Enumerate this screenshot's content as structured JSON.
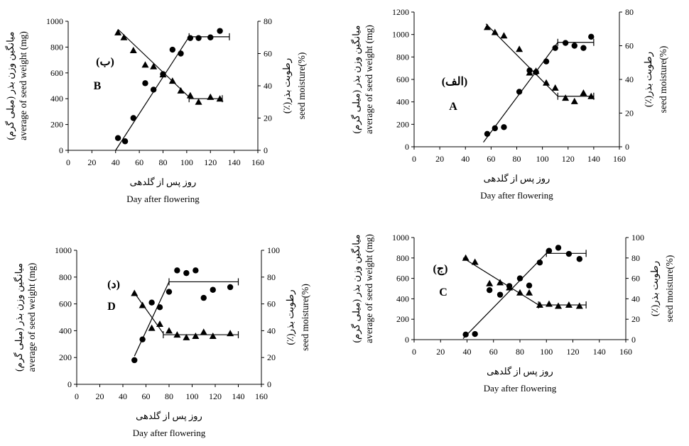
{
  "chart_data": [
    {
      "id": "B",
      "type": "scatter",
      "panel_label": "B",
      "panel_label_fa": "(ب)",
      "xlabel_fa": "روز پس از گلدهی",
      "xlabel": "Day after flowering",
      "ylabel_fa": "میانگین وزن بذر (میلی گرم)",
      "ylabel": "average of seed weight (mg)",
      "y2label_fa": "رطوبت بذر(٪)",
      "y2label": "seed moisture(%)",
      "xlim": [
        0,
        160
      ],
      "xticks": [
        0,
        20,
        40,
        60,
        80,
        100,
        120,
        140,
        160
      ],
      "ylim": [
        0,
        1000
      ],
      "yticks": [
        0,
        200,
        400,
        600,
        800,
        1000
      ],
      "y2lim": [
        0,
        80
      ],
      "y2ticks": [
        0,
        20,
        40,
        60,
        80
      ],
      "grid": false,
      "series": [
        {
          "marker": "circle",
          "axis": "left",
          "points": [
            [
              42,
              95
            ],
            [
              48,
              70
            ],
            [
              55,
              250
            ],
            [
              65,
              520
            ],
            [
              72,
              470
            ],
            [
              80,
              590
            ],
            [
              88,
              780
            ],
            [
              95,
              750
            ],
            [
              103,
              870
            ],
            [
              110,
              870
            ],
            [
              120,
              875
            ],
            [
              128,
              925
            ]
          ]
        },
        {
          "marker": "triangle",
          "axis": "right",
          "points": [
            [
              42,
              73
            ],
            [
              47,
              70
            ],
            [
              55,
              62
            ],
            [
              65,
              53
            ],
            [
              72,
              52
            ],
            [
              80,
              47
            ],
            [
              88,
              43
            ],
            [
              95,
              37
            ],
            [
              103,
              34
            ],
            [
              110,
              30
            ],
            [
              120,
              33
            ],
            [
              128,
              32
            ]
          ]
        }
      ],
      "fit_lines": [
        {
          "axis": "left",
          "from": [
            40,
            0
          ],
          "to": [
            102,
            880
          ]
        },
        {
          "axis": "left",
          "from": [
            102,
            880
          ],
          "to": [
            136,
            880
          ]
        },
        {
          "axis": "right",
          "from": [
            42,
            75
          ],
          "to": [
            102,
            33
          ]
        },
        {
          "axis": "right",
          "from": [
            102,
            32
          ],
          "to": [
            130,
            32
          ]
        }
      ]
    },
    {
      "id": "A",
      "type": "scatter",
      "panel_label": "A",
      "panel_label_fa": "(الف)",
      "xlabel_fa": "روز پس از گلدهی",
      "xlabel": "Day after flowering",
      "ylabel_fa": "میانگین وزن بذر (میلی گرم)",
      "ylabel": "average of seed weight (mg)",
      "y2label_fa": "رطوبت بذر(٪)",
      "y2label": "seed moisture(%)",
      "xlim": [
        0,
        160
      ],
      "xticks": [
        0,
        20,
        40,
        60,
        80,
        100,
        120,
        140,
        160
      ],
      "ylim": [
        0,
        1200
      ],
      "yticks": [
        0,
        200,
        400,
        600,
        800,
        1000,
        1200
      ],
      "y2lim": [
        0,
        80
      ],
      "y2ticks": [
        0,
        20,
        40,
        60,
        80
      ],
      "grid": false,
      "series": [
        {
          "marker": "circle",
          "axis": "left",
          "points": [
            [
              57,
              115
            ],
            [
              63,
              165
            ],
            [
              70,
              175
            ],
            [
              82,
              490
            ],
            [
              90,
              680
            ],
            [
              95,
              665
            ],
            [
              103,
              760
            ],
            [
              110,
              880
            ],
            [
              118,
              925
            ],
            [
              125,
              900
            ],
            [
              132,
              880
            ],
            [
              138,
              980
            ]
          ]
        },
        {
          "marker": "triangle",
          "axis": "right",
          "points": [
            [
              57,
              71
            ],
            [
              63,
              68
            ],
            [
              70,
              66
            ],
            [
              82,
              58
            ],
            [
              90,
              44
            ],
            [
              95,
              45
            ],
            [
              103,
              38
            ],
            [
              110,
              35
            ],
            [
              118,
              29
            ],
            [
              125,
              27
            ],
            [
              132,
              32
            ],
            [
              138,
              30
            ]
          ]
        }
      ],
      "fit_lines": [
        {
          "axis": "left",
          "from": [
            54,
            40
          ],
          "to": [
            112,
            930
          ]
        },
        {
          "axis": "left",
          "from": [
            112,
            930
          ],
          "to": [
            140,
            930
          ]
        },
        {
          "axis": "right",
          "from": [
            56,
            73
          ],
          "to": [
            112,
            30
          ]
        },
        {
          "axis": "right",
          "from": [
            112,
            30
          ],
          "to": [
            140,
            30
          ]
        }
      ]
    },
    {
      "id": "D",
      "type": "scatter",
      "panel_label": "D",
      "panel_label_fa": "(د)",
      "xlabel_fa": "روز پس از گلدهی",
      "xlabel": "Day after flowering",
      "ylabel_fa": "میانگین وزن بذر (میلی گرم)",
      "ylabel": "average of seed weight (mg)",
      "y2label_fa": "رطوبت بذر(٪)",
      "y2label": "seed moisture(%)",
      "xlim": [
        0,
        160
      ],
      "xticks": [
        0,
        20,
        40,
        60,
        80,
        100,
        120,
        140,
        160
      ],
      "ylim": [
        0,
        1000
      ],
      "yticks": [
        0,
        200,
        400,
        600,
        800,
        1000
      ],
      "y2lim": [
        0,
        100
      ],
      "y2ticks": [
        0,
        20,
        40,
        60,
        80,
        100
      ],
      "grid": false,
      "series": [
        {
          "marker": "circle",
          "axis": "left",
          "points": [
            [
              50,
              180
            ],
            [
              57,
              335
            ],
            [
              65,
              610
            ],
            [
              72,
              575
            ],
            [
              80,
              690
            ],
            [
              87,
              850
            ],
            [
              95,
              830
            ],
            [
              103,
              850
            ],
            [
              110,
              645
            ],
            [
              118,
              705
            ],
            [
              133,
              725
            ]
          ]
        },
        {
          "marker": "triangle",
          "axis": "right",
          "points": [
            [
              50,
              68
            ],
            [
              57,
              59
            ],
            [
              65,
              42
            ],
            [
              72,
              45
            ],
            [
              80,
              40
            ],
            [
              87,
              37
            ],
            [
              95,
              35
            ],
            [
              103,
              36
            ],
            [
              110,
              39
            ],
            [
              118,
              36
            ],
            [
              133,
              38
            ]
          ]
        }
      ],
      "fit_lines": [
        {
          "axis": "left",
          "from": [
            50,
            210
          ],
          "to": [
            80,
            765
          ]
        },
        {
          "axis": "left",
          "from": [
            80,
            765
          ],
          "to": [
            140,
            765
          ]
        },
        {
          "axis": "right",
          "from": [
            51,
            67
          ],
          "to": [
            75,
            38
          ]
        },
        {
          "axis": "right",
          "from": [
            75,
            37
          ],
          "to": [
            140,
            37
          ]
        }
      ]
    },
    {
      "id": "C",
      "type": "scatter",
      "panel_label": "C",
      "panel_label_fa": "(ج)",
      "xlabel_fa": "روز پس از گلدهی",
      "xlabel": "Day after flowering",
      "ylabel_fa": "میانگین وزن بذر (میلی گرم)",
      "ylabel": "average of seed weight (mg)",
      "y2label_fa": "رطوبت بذر(٪)",
      "y2label": "seed moisture(%)",
      "xlim": [
        0,
        160
      ],
      "xticks": [
        0,
        20,
        40,
        60,
        80,
        100,
        120,
        140,
        160
      ],
      "ylim": [
        0,
        1000
      ],
      "yticks": [
        0,
        200,
        400,
        600,
        800,
        1000
      ],
      "y2lim": [
        0,
        100
      ],
      "y2ticks": [
        0,
        20,
        40,
        60,
        80,
        100
      ],
      "grid": false,
      "series": [
        {
          "marker": "circle",
          "axis": "left",
          "points": [
            [
              39,
              50
            ],
            [
              46,
              55
            ],
            [
              57,
              485
            ],
            [
              65,
              440
            ],
            [
              72,
              525
            ],
            [
              80,
              600
            ],
            [
              87,
              530
            ],
            [
              95,
              755
            ],
            [
              102,
              870
            ],
            [
              109,
              900
            ],
            [
              117,
              840
            ],
            [
              125,
              790
            ]
          ]
        },
        {
          "marker": "triangle",
          "axis": "right",
          "points": [
            [
              39,
              80
            ],
            [
              46,
              76
            ],
            [
              57,
              55
            ],
            [
              65,
              56
            ],
            [
              72,
              51
            ],
            [
              80,
              46
            ],
            [
              87,
              46
            ],
            [
              95,
              34
            ],
            [
              102,
              35
            ],
            [
              109,
              33
            ],
            [
              117,
              34
            ],
            [
              125,
              33
            ]
          ]
        }
      ],
      "fit_lines": [
        {
          "axis": "left",
          "from": [
            37,
            10
          ],
          "to": [
            100,
            845
          ]
        },
        {
          "axis": "left",
          "from": [
            100,
            845
          ],
          "to": [
            130,
            845
          ]
        },
        {
          "axis": "right",
          "from": [
            37,
            80
          ],
          "to": [
            94,
            34
          ]
        },
        {
          "axis": "right",
          "from": [
            94,
            34
          ],
          "to": [
            130,
            34
          ]
        }
      ]
    }
  ]
}
